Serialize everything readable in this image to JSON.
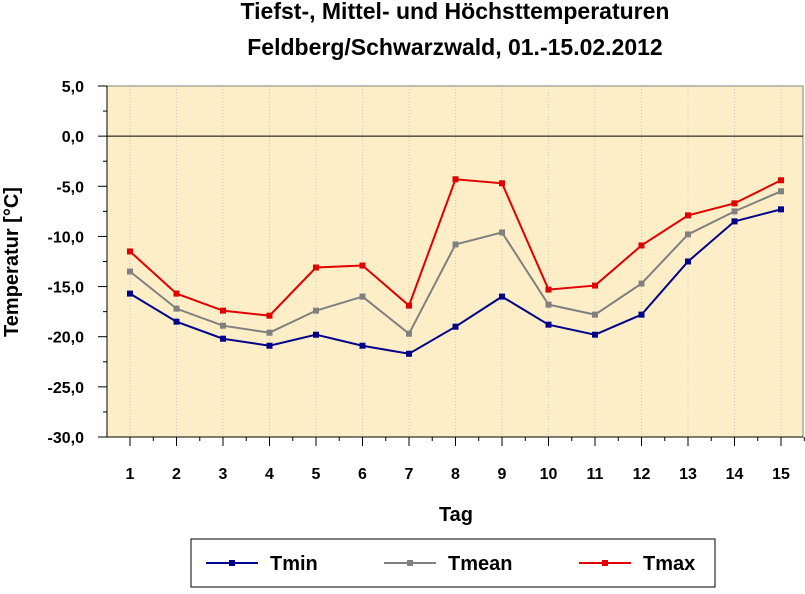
{
  "chart_data": {
    "type": "line",
    "title": "Tiefst-, Mittel- und Höchsttemperaturen",
    "subtitle": "Feldberg/Schwarzwald, 01.-15.02.2012",
    "xlabel": "Tag",
    "ylabel": "Temperatur [°C]",
    "x": [
      1,
      2,
      3,
      4,
      5,
      6,
      7,
      8,
      9,
      10,
      11,
      12,
      13,
      14,
      15
    ],
    "ylim": [
      -30,
      5
    ],
    "yticks": [
      5,
      0,
      -5,
      -10,
      -15,
      -20,
      -25,
      -30
    ],
    "ytick_labels": [
      "5,0",
      "0,0",
      "-5,0",
      "-10,0",
      "-15,0",
      "-20,0",
      "-25,0",
      "-30,0"
    ],
    "xtick_labels": [
      "1",
      "2",
      "3",
      "4",
      "5",
      "6",
      "7",
      "8",
      "9",
      "10",
      "11",
      "12",
      "13",
      "14",
      "15"
    ],
    "grid": "vertical dotted",
    "legend_position": "bottom",
    "plot_background": "#fdeec7",
    "series": [
      {
        "name": "Tmin",
        "color": "#00008b",
        "values": [
          -15.7,
          -18.5,
          -20.2,
          -20.9,
          -19.8,
          -20.9,
          -21.7,
          -19.0,
          -16.0,
          -18.8,
          -19.8,
          -17.8,
          -12.5,
          -8.5,
          -7.3
        ]
      },
      {
        "name": "Tmean",
        "color": "#808080",
        "values": [
          -13.5,
          -17.2,
          -18.9,
          -19.6,
          -17.4,
          -16.0,
          -19.7,
          -10.8,
          -9.6,
          -16.8,
          -17.8,
          -14.7,
          -9.8,
          -7.5,
          -5.5
        ]
      },
      {
        "name": "Tmax",
        "color": "#e00000",
        "values": [
          -11.5,
          -15.7,
          -17.4,
          -17.9,
          -13.1,
          -12.9,
          -16.9,
          -4.3,
          -4.7,
          -15.3,
          -14.9,
          -10.9,
          -7.9,
          -6.7,
          -4.4
        ]
      }
    ]
  }
}
